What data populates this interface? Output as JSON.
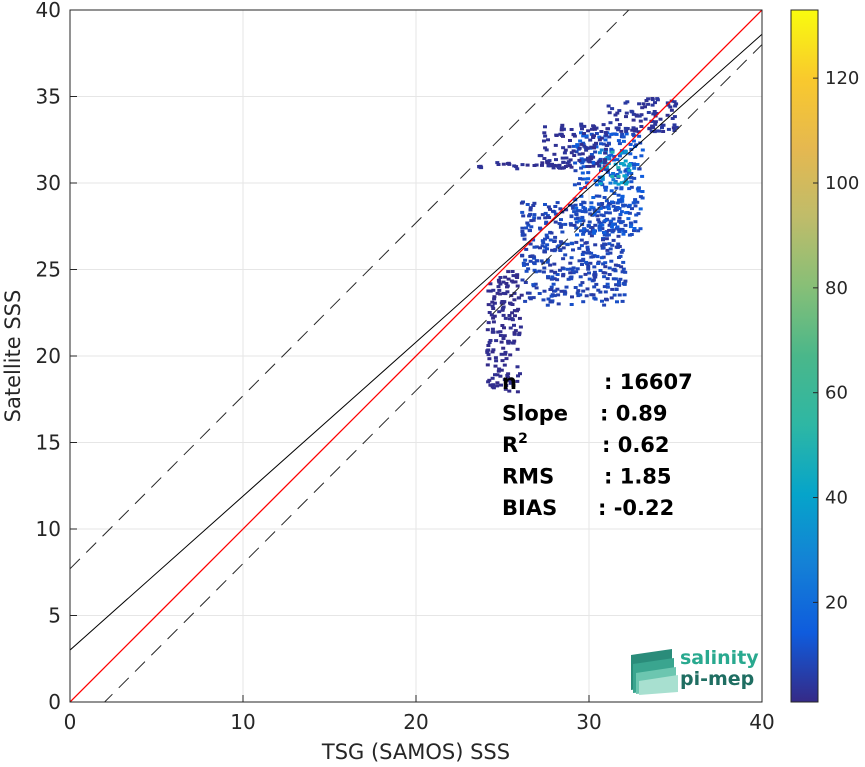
{
  "chart_data": {
    "type": "scatter",
    "xlabel": "TSG (SAMOS) SSS",
    "ylabel": "Satellite SSS",
    "xlim": [
      0,
      40
    ],
    "ylim": [
      0,
      40
    ],
    "xticks": [
      "0",
      "10",
      "20",
      "30",
      "40"
    ],
    "yticks": [
      "0",
      "5",
      "10",
      "15",
      "20",
      "25",
      "30",
      "35",
      "40"
    ],
    "grid": true,
    "reference_lines": {
      "identity": {
        "slope": 1,
        "intercept": 0,
        "color": "#ff0000"
      },
      "regression": {
        "slope": 0.89,
        "intercept": 3.0,
        "color": "#000000"
      },
      "bounds": {
        "slope": 1,
        "intercepts": [
          7.7,
          -2.0
        ],
        "style": "dashed"
      }
    },
    "density_regions": [
      {
        "x": [
          26,
          32
        ],
        "y": [
          23,
          29
        ],
        "count": 8
      },
      {
        "x": [
          29,
          33
        ],
        "y": [
          27,
          33
        ],
        "count": 12
      },
      {
        "x": [
          30.5,
          32.5
        ],
        "y": [
          30,
          32
        ],
        "count": 35
      },
      {
        "x": [
          27,
          31
        ],
        "y": [
          31,
          33.5
        ],
        "count": 3
      },
      {
        "x": [
          23,
          29
        ],
        "y": [
          30.9,
          31.3
        ],
        "count": 3
      },
      {
        "x": [
          31,
          35
        ],
        "y": [
          33,
          35
        ],
        "count": 4
      },
      {
        "x": [
          24,
          26
        ],
        "y": [
          18,
          25
        ],
        "count": 2
      }
    ],
    "stats": [
      {
        "label": "n",
        "value": ": 16607"
      },
      {
        "label": "Slope",
        "value": ": 0.89"
      },
      {
        "label": "R",
        "sup": "2",
        "value": ": 0.62"
      },
      {
        "label": "RMS",
        "value": ": 1.85"
      },
      {
        "label": "BIAS",
        "value": ": -0.22"
      }
    ],
    "colorbar": {
      "min": 1,
      "max": 133,
      "ticks": [
        "20",
        "40",
        "60",
        "80",
        "100",
        "120"
      ],
      "colormap": "parula"
    }
  },
  "logo": {
    "line1": "salinity",
    "line2": "pi-mep"
  }
}
